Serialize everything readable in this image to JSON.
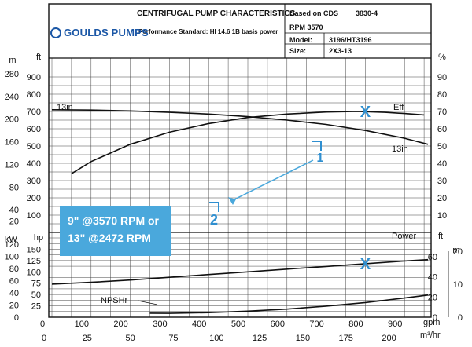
{
  "header": {
    "title": "CENTRIFUGAL PUMP CHARACTERISTICS",
    "performance_standard": "Performance Standard: HI 14.6 1B basis power",
    "brand": "GOULDS PUMPS",
    "based_on_label": "Based on CDS",
    "based_on_value": "3830-4",
    "rpm_label": "RPM 3570",
    "model_label": "Model:",
    "model_value": "3196/HT3196",
    "size_label": "Size:",
    "size_value": "2X3-13"
  },
  "callout": {
    "line1": "9\" @3570 RPM or",
    "line2": "13\" @2472 RPM"
  },
  "markers": {
    "marker1": "1",
    "marker2": "2"
  },
  "chart_data": {
    "type": "line",
    "x_gpm": {
      "label": "gpm",
      "range": [
        0,
        1000
      ],
      "ticks": [
        "0",
        "100",
        "200",
        "300",
        "400",
        "500",
        "600",
        "700",
        "800",
        "900"
      ]
    },
    "x_m3hr": {
      "label": "m³/hr",
      "ticks": [
        "0",
        "25",
        "50",
        "75",
        "100",
        "125",
        "150",
        "175",
        "200"
      ]
    },
    "head": {
      "unit_ft": "ft",
      "unit_m": "m",
      "range_ft": [
        0,
        900
      ],
      "ticks_ft": [
        "100",
        "200",
        "300",
        "400",
        "500",
        "600",
        "700",
        "800",
        "900"
      ],
      "ticks_m": [
        "20",
        "40",
        "80",
        "120",
        "160",
        "200",
        "240",
        "280"
      ],
      "m_values": [
        20,
        40,
        80,
        120,
        160,
        200,
        240,
        280
      ]
    },
    "efficiency": {
      "unit": "%",
      "range": [
        0,
        90
      ],
      "ticks": [
        "10",
        "20",
        "30",
        "40",
        "50",
        "60",
        "70",
        "80",
        "90"
      ]
    },
    "power": {
      "unit_hp": "hp",
      "unit_kw": "kW",
      "range_hp": [
        0,
        175
      ],
      "ticks_hp": [
        "25",
        "50",
        "75",
        "100",
        "125",
        "150"
      ],
      "ticks_kw": [
        "0",
        "20",
        "40",
        "60",
        "80",
        "100",
        "120"
      ],
      "kw_values": [
        0,
        20,
        40,
        60,
        80,
        100,
        120
      ]
    },
    "npsh": {
      "unit_ft": "ft",
      "unit_m": "m",
      "ticks_ft": [
        "0",
        "20",
        "40",
        "60"
      ],
      "ft_values": [
        0,
        20,
        40,
        60
      ],
      "ticks_m": [
        "0",
        "10",
        "20"
      ],
      "m_values": [
        0,
        10,
        20
      ]
    },
    "series": [
      {
        "name": "13in",
        "axis": "head",
        "points": [
          [
            0,
            710
          ],
          [
            100,
            708
          ],
          [
            200,
            703
          ],
          [
            300,
            695
          ],
          [
            400,
            685
          ],
          [
            500,
            670
          ],
          [
            600,
            650
          ],
          [
            700,
            625
          ],
          [
            800,
            590
          ],
          [
            900,
            545
          ],
          [
            960,
            510
          ]
        ]
      },
      {
        "name": "Eff",
        "axis": "efficiency",
        "points": [
          [
            50,
            34
          ],
          [
            100,
            41
          ],
          [
            200,
            51
          ],
          [
            300,
            58
          ],
          [
            400,
            63
          ],
          [
            500,
            66.5
          ],
          [
            600,
            68.5
          ],
          [
            700,
            69.7
          ],
          [
            780,
            70
          ],
          [
            850,
            69.5
          ],
          [
            900,
            68.8
          ],
          [
            950,
            68
          ]
        ]
      },
      {
        "name": "Power",
        "axis": "power",
        "points": [
          [
            0,
            73
          ],
          [
            100,
            77
          ],
          [
            200,
            82
          ],
          [
            300,
            88
          ],
          [
            400,
            94
          ],
          [
            500,
            100
          ],
          [
            600,
            106
          ],
          [
            700,
            112
          ],
          [
            800,
            118
          ],
          [
            900,
            124
          ],
          [
            960,
            127
          ]
        ]
      },
      {
        "name": "NPSHr",
        "axis": "npsh",
        "points": [
          [
            250,
            4
          ],
          [
            300,
            3.8
          ],
          [
            400,
            4.5
          ],
          [
            500,
            6
          ],
          [
            600,
            8
          ],
          [
            700,
            11
          ],
          [
            800,
            14.5
          ],
          [
            900,
            19
          ],
          [
            960,
            22
          ]
        ]
      }
    ],
    "curve_labels": {
      "head_left": "13in",
      "head_right": "13in",
      "eff": "Eff",
      "power": "Power",
      "npsh": "NPSHr"
    },
    "bep_markers": [
      {
        "label": "X",
        "gpm": 800,
        "on": "Eff"
      },
      {
        "label": "X",
        "gpm": 800,
        "on": "Power"
      }
    ]
  }
}
